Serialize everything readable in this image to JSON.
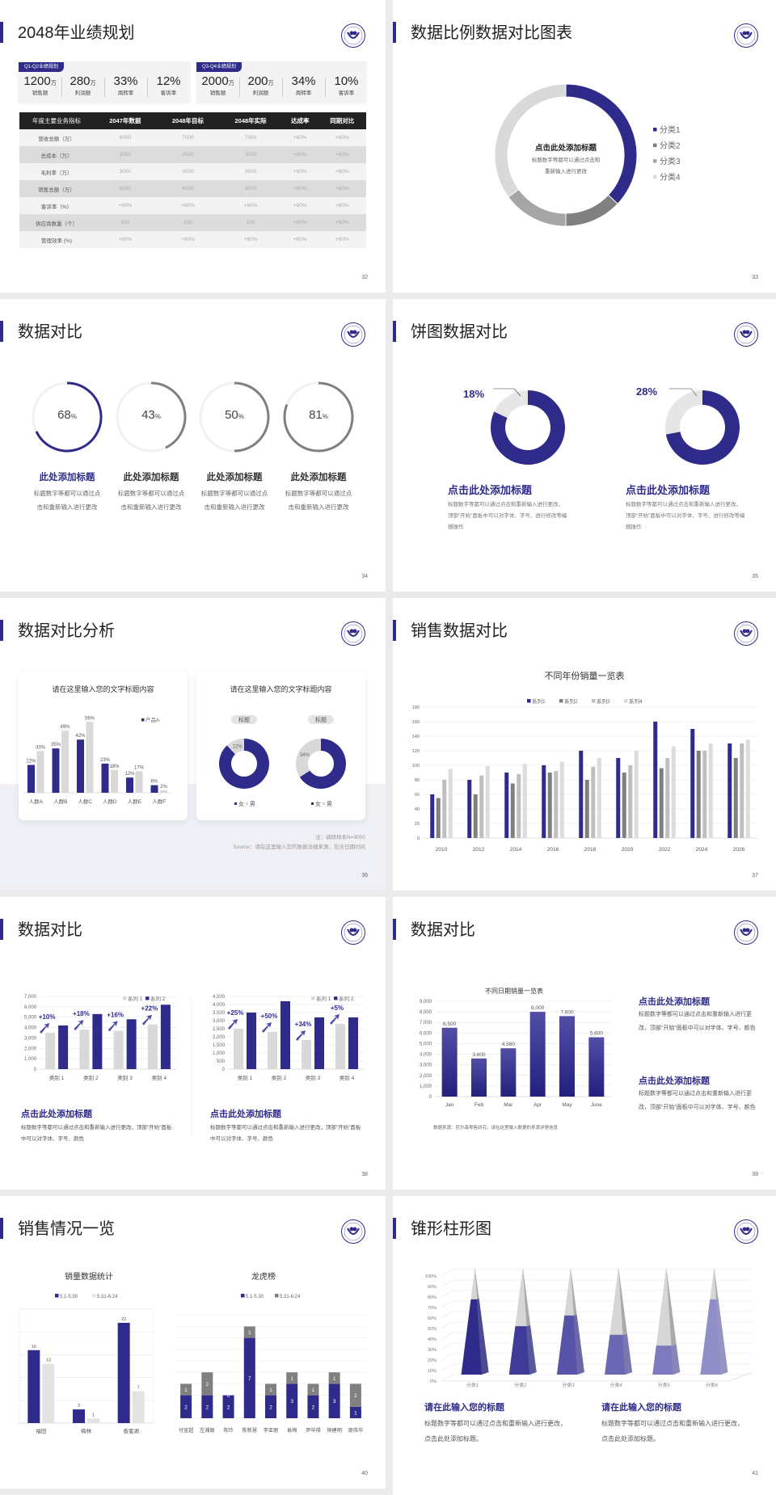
{
  "accent": "#2e2b8a",
  "logo": {
    "icon": "university-seal-logo"
  },
  "s32": {
    "page": "32",
    "title": "2048年业绩规划",
    "kpi_groups": [
      {
        "tag": "Q1-Q2业绩规划",
        "stats": [
          {
            "value": "1200",
            "unit": "万",
            "label": "销售额"
          },
          {
            "value": "280",
            "unit": "万",
            "label": "利润额"
          },
          {
            "value": "33%",
            "unit": "",
            "label": "周转率"
          },
          {
            "value": "12%",
            "unit": "",
            "label": "客诉率"
          }
        ]
      },
      {
        "tag": "Q3-Q4业绩规划",
        "stats": [
          {
            "value": "2000",
            "unit": "万",
            "label": "销售额"
          },
          {
            "value": "200",
            "unit": "万",
            "label": "利润额"
          },
          {
            "value": "34%",
            "unit": "",
            "label": "周转率"
          },
          {
            "value": "10%",
            "unit": "",
            "label": "客诉率"
          }
        ]
      }
    ],
    "table": {
      "headers": [
        "年度主要业务指标",
        "2047年数据",
        "2048年目标",
        "2048年实际",
        "达成率",
        "同期对比"
      ],
      "rows": [
        [
          "营收总额（万）",
          "6000",
          "7000",
          "7000",
          "+60%",
          "+60%"
        ],
        [
          "总成本（万）",
          "3000",
          "3000",
          "3000",
          "+60%",
          "+60%"
        ],
        [
          "毛利率（万）",
          "3000",
          "3000",
          "3000",
          "+60%",
          "+60%"
        ],
        [
          "销售总额（万）",
          "6000",
          "6000",
          "6000",
          "+60%",
          "+60%"
        ],
        [
          "客诉率（%）",
          "+60%",
          "+60%",
          "+60%",
          "+60%",
          "+60%"
        ],
        [
          "供应商数量（个）",
          "100",
          "100",
          "100",
          "+60%",
          "+60%"
        ],
        [
          "管理效率 (%)",
          "+60%",
          "+60%",
          "+60%",
          "+60%",
          "+60%"
        ]
      ]
    }
  },
  "s33": {
    "page": "33",
    "title": "数据比例数据对比图表",
    "center_title": "点击此处添加标题",
    "center_desc_1": "标题数字等都可以通过点击和",
    "center_desc_2": "重新输入进行更改"
  },
  "s34": {
    "page": "34",
    "title": "数据对比",
    "items": [
      {
        "value": 68,
        "num": "68",
        "unit": "%",
        "heading": "此处添加标题",
        "desc": "标题数字等都可以通过点击和重新输入进行更改",
        "color": "#2e2b8a"
      },
      {
        "value": 43,
        "num": "43",
        "unit": "%",
        "heading": "此处添加标题",
        "desc": "标题数字等都可以通过点击和重新输入进行更改",
        "color": "#808080"
      },
      {
        "value": 50,
        "num": "50",
        "unit": "%",
        "heading": "此处添加标题",
        "desc": "标题数字等都可以通过点击和重新输入进行更改",
        "color": "#808080"
      },
      {
        "value": 81,
        "num": "81",
        "unit": "%",
        "heading": "此处添加标题",
        "desc": "标题数字等都可以通过点击和重新输入进行更改",
        "color": "#808080"
      }
    ]
  },
  "s35": {
    "page": "35",
    "title": "饼图数据对比",
    "items": [
      {
        "value": 18,
        "label": "18%",
        "heading": "点击此处添加标题",
        "desc": "标题数字等都可以通过点击和重新输入进行更改，顶部“开始”面板中可以对字体、字号、进行修改等编辑操作"
      },
      {
        "value": 28,
        "label": "28%",
        "heading": "点击此处添加标题",
        "desc": "标题数字等都可以通过点击和重新输入进行更改，顶部“开始”面板中可以对字体、字号、进行修改等编辑操作"
      }
    ]
  },
  "s36": {
    "page": "36",
    "title": "数据对比分析",
    "card_title_1": "请在这里输入您的文字标题内容",
    "card_title_2": "请在这里输入您的文字标题内容",
    "note": "注：调研样本N=9000",
    "source": "Source：请在这里输入您的数据详细来源，包含日期时间"
  },
  "s37": {
    "page": "37",
    "title": "销售数据对比"
  },
  "s38": {
    "page": "38",
    "title": "数据对比",
    "blocks": [
      {
        "heading": "点击此处添加标题",
        "desc": "标题数字等都可以通过点击和重新输入进行更改，顶部“开始”面板中可以对字体、字号、颜色"
      },
      {
        "heading": "点击此处添加标题",
        "desc": "标题数字等都可以通过点击和重新输入进行更改，顶部“开始”面板中可以对字体、字号、颜色"
      }
    ]
  },
  "s39": {
    "page": "39",
    "title": "数据对比",
    "source": "数据来源：尼尔森零售研究，请在这里输入数据的来源详情信息",
    "blocks": [
      {
        "heading": "点击此处添加标题",
        "desc": "标题数字等都可以通过点击和重新输入进行更改，顶部“开始”面板中可以对字体、字号、颜色"
      },
      {
        "heading": "点击此处添加标题",
        "desc": "标题数字等都可以通过点击和重新输入进行更改，顶部“开始”面板中可以对字体、字号、颜色"
      }
    ]
  },
  "s40": {
    "page": "40",
    "title": "销售情况一览"
  },
  "s41": {
    "page": "41",
    "title": "锥形柱形图",
    "blocks": [
      {
        "heading": "请在此输入您的标题",
        "desc": "标题数字等都可以通过点击和重新输入进行更改，点击此处添加标题。"
      },
      {
        "heading": "请在此输入您的标题",
        "desc": "标题数字等都可以通过点击和重新输入进行更改，点击此处添加标题。"
      }
    ]
  },
  "chart_data": [
    {
      "type": "pie",
      "donut": true,
      "categories": [
        "分类1",
        "分类2",
        "分类3",
        "分类4"
      ],
      "values": [
        37,
        13,
        15,
        35
      ],
      "colors": [
        "#2e2b8a",
        "#808080",
        "#a6a6a6",
        "#d9d9d9"
      ],
      "legend": "right"
    },
    {
      "type": "bar",
      "categories": [
        "人群A",
        "人群B",
        "人群C",
        "人群D",
        "人群E",
        "人群F"
      ],
      "series": [
        {
          "name": "产品A",
          "values": [
            22,
            35,
            42,
            23,
            12,
            6
          ],
          "color": "#2e2b8a"
        },
        {
          "values": [
            33,
            49,
            56,
            18,
            17,
            2
          ],
          "color": "#d9d9d9"
        }
      ],
      "unit": "%",
      "ylim": [
        0,
        60
      ],
      "legend": "top-right"
    },
    {
      "type": "pie",
      "donut": true,
      "categories": [
        "女",
        "男"
      ],
      "charts": [
        {
          "label": "标题",
          "values": [
            88,
            12
          ],
          "shown": [
            "",
            "12%"
          ]
        },
        {
          "label": "标题",
          "values": [
            66,
            34
          ],
          "shown": [
            "",
            "34%"
          ]
        }
      ],
      "colors": [
        "#2e2b8a",
        "#d9d9d9"
      ],
      "legend": "bottom"
    },
    {
      "type": "bar",
      "title": "不同年份销量一览表",
      "categories": [
        "2010",
        "2012",
        "2014",
        "2016",
        "2018",
        "2020",
        "2022",
        "2024",
        "2026"
      ],
      "series": [
        {
          "name": "系列1",
          "values": [
            60,
            80,
            90,
            100,
            120,
            110,
            160,
            150,
            130
          ],
          "color": "#2e2b8a"
        },
        {
          "name": "系列2",
          "values": [
            55,
            60,
            75,
            90,
            80,
            90,
            96,
            120,
            110
          ],
          "color": "#808080"
        },
        {
          "name": "系列3",
          "values": [
            80,
            86,
            88,
            92,
            98,
            100,
            110,
            120,
            130
          ],
          "color": "#bfbfbf"
        },
        {
          "name": "系列4",
          "values": [
            95,
            99,
            102,
            105,
            110,
            120,
            126,
            130,
            135
          ],
          "color": "#dcdcdc"
        }
      ],
      "ylim": [
        0,
        180
      ],
      "yticks": [
        "0",
        "20",
        "40",
        "60",
        "80",
        "100",
        "120",
        "140",
        "160",
        "180"
      ],
      "legend": "top"
    },
    {
      "type": "bar",
      "categories": [
        "类别 1",
        "类别 2",
        "类别 3",
        "类别 4"
      ],
      "series": [
        {
          "name": "系列 1",
          "values": [
            3500,
            3800,
            3700,
            4300
          ],
          "color": "#d9d9d9"
        },
        {
          "name": "系列 2",
          "values": [
            4200,
            5300,
            4800,
            6200
          ],
          "color": "#2e2b8a"
        }
      ],
      "annotations": [
        "+10%",
        "+18%",
        "+16%",
        "+22%"
      ],
      "ylim": [
        0,
        7000
      ],
      "yticks": [
        "0",
        "1,000",
        "2,000",
        "3,000",
        "4,000",
        "5,000",
        "6,000",
        "7,000"
      ],
      "legend": "top-right"
    },
    {
      "type": "bar",
      "categories": [
        "类别 1",
        "类别 2",
        "类别 3",
        "类别 4"
      ],
      "series": [
        {
          "name": "系列 1",
          "values": [
            2500,
            2300,
            1800,
            2800
          ],
          "color": "#d9d9d9"
        },
        {
          "name": "系列 2",
          "values": [
            3500,
            4200,
            3200,
            3200
          ],
          "color": "#2e2b8a"
        }
      ],
      "annotations": [
        "+25%",
        "+50%",
        "+34%",
        "+5%"
      ],
      "ylim": [
        0,
        4500
      ],
      "yticks": [
        "0",
        "500",
        "1,000",
        "1,500",
        "2,000",
        "2,500",
        "3,000",
        "3,500",
        "4,000",
        "4,500"
      ],
      "legend": "top-right"
    },
    {
      "type": "bar",
      "title": "不同日期销量一览表",
      "categories": [
        "Jan",
        "Feb",
        "Mar",
        "Apr",
        "May",
        "June"
      ],
      "series": [
        {
          "values": [
            6500,
            3600,
            4560,
            8000,
            7600,
            5600
          ],
          "color": "#2e2b8a"
        }
      ],
      "data_labels": [
        "6,500",
        "3,600",
        "4,560",
        "8,000",
        "7,600",
        "5,600"
      ],
      "ylim": [
        0,
        9000
      ],
      "yticks": [
        "0",
        "1,000",
        "2,000",
        "3,000",
        "4,000",
        "5,000",
        "6,000",
        "7,000",
        "8,000",
        "9,000"
      ]
    },
    {
      "type": "bar",
      "title": "销量数据统计",
      "categories": [
        "福田",
        "梅林",
        "香蜜湖"
      ],
      "series": [
        {
          "name": "5.1-5.30",
          "values": [
            16,
            3,
            22
          ],
          "color": "#2e2b8a"
        },
        {
          "name": "5.31-6.24",
          "values": [
            13,
            1,
            7
          ],
          "color": "#e3e3e3"
        }
      ],
      "ylim": [
        0,
        25
      ],
      "legend": "top"
    },
    {
      "type": "bar",
      "stacked": true,
      "title": "龙虎榜",
      "categories": [
        "付宣超",
        "左湘阁",
        "陈玲",
        "陈新慧",
        "李亚丽",
        "易梅",
        "尹华禄",
        "钟建明",
        "周伟华"
      ],
      "series": [
        {
          "name": "5.1-5.30",
          "values": [
            2,
            2,
            2,
            7,
            2,
            3,
            2,
            3,
            1
          ],
          "color": "#2e2b8a"
        },
        {
          "name": "5.31-6.24",
          "values": [
            1,
            2,
            0,
            1,
            1,
            1,
            1,
            1,
            2
          ],
          "color": "#808080"
        }
      ],
      "ylim": [
        0,
        9
      ],
      "legend": "top"
    },
    {
      "type": "bar",
      "subtype": "cone-3d",
      "categories": [
        "分类1",
        "分类2",
        "分类3",
        "分类4",
        "分类5",
        "分类6"
      ],
      "values": [
        70,
        45,
        55,
        37,
        27,
        70
      ],
      "colors": [
        "#2e2b8a",
        "#3f3c99",
        "#5653a8",
        "#6a67b3",
        "#7d7abf",
        "#908ec9"
      ],
      "ylim": [
        0,
        100
      ],
      "yticks": [
        "0%",
        "10%",
        "20%",
        "30%",
        "40%",
        "50%",
        "60%",
        "70%",
        "80%",
        "90%",
        "100%"
      ]
    }
  ]
}
